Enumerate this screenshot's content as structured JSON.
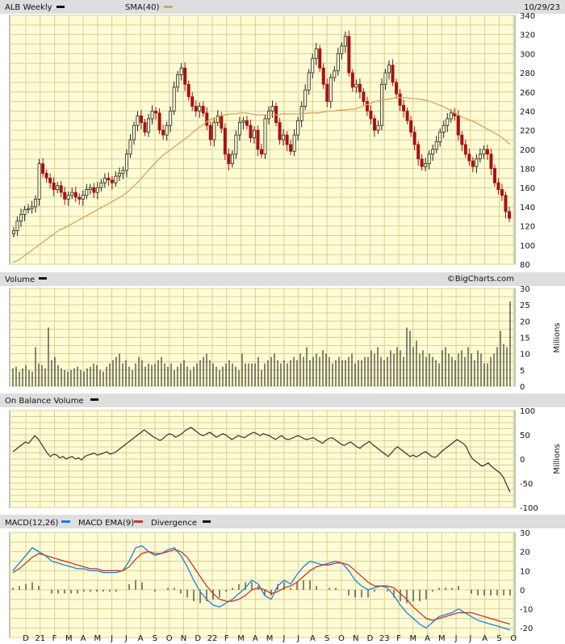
{
  "header": {
    "symbol_label": "ALB Weekly",
    "sma_label": "SMA(40)",
    "date": "10/29/23",
    "watermark": "©BigCharts.com"
  },
  "colors": {
    "panel_bg": "#fdfcd6",
    "grid": "#d8d28c",
    "header_bg": "#dedede",
    "up": "#222222",
    "down": "#aa1111",
    "sma": "#d9a55a",
    "macd": "#1e7ee6",
    "macd_ema": "#c0392b",
    "line": "#333333"
  },
  "chart_data": [
    {
      "type": "candlestick",
      "title": "ALB Weekly",
      "ylim": [
        80,
        340
      ],
      "yticks": [
        80,
        100,
        120,
        140,
        160,
        180,
        200,
        220,
        240,
        260,
        280,
        300,
        320,
        340
      ],
      "x_ticks": [
        "D",
        "21",
        "F",
        "M",
        "A",
        "M",
        "J",
        "J",
        "A",
        "S",
        "O",
        "N",
        "D",
        "22",
        "F",
        "M",
        "A",
        "M",
        "J",
        "J",
        "A",
        "S",
        "O",
        "N",
        "D",
        "23",
        "F",
        "M",
        "A",
        "M",
        "J",
        "J",
        "A",
        "S",
        "O"
      ],
      "closes": [
        115,
        125,
        132,
        137,
        138,
        140,
        148,
        185,
        175,
        170,
        165,
        158,
        162,
        155,
        148,
        152,
        155,
        150,
        148,
        152,
        158,
        160,
        155,
        160,
        165,
        170,
        168,
        165,
        172,
        175,
        178,
        195,
        210,
        225,
        235,
        228,
        218,
        232,
        240,
        238,
        220,
        215,
        225,
        240,
        265,
        278,
        285,
        268,
        255,
        245,
        240,
        245,
        238,
        225,
        210,
        228,
        235,
        222,
        195,
        185,
        195,
        215,
        228,
        230,
        225,
        212,
        220,
        200,
        195,
        232,
        240,
        245,
        228,
        210,
        215,
        205,
        198,
        215,
        230,
        245,
        262,
        280,
        295,
        305,
        285,
        268,
        250,
        275,
        282,
        300,
        308,
        318,
        280,
        265,
        268,
        260,
        250,
        240,
        232,
        220,
        225,
        268,
        280,
        288,
        270,
        258,
        246,
        240,
        230,
        218,
        205,
        190,
        182,
        185,
        195,
        200,
        208,
        218,
        225,
        232,
        238,
        235,
        215,
        205,
        195,
        188,
        182,
        190,
        195,
        200,
        195,
        180,
        165,
        158,
        152,
        135,
        128
      ],
      "sma": [
        82,
        84,
        88,
        92,
        96,
        100,
        104,
        108,
        112,
        116,
        118,
        121,
        124,
        127,
        130,
        133,
        136,
        139,
        142,
        145,
        148,
        151,
        155,
        160,
        165,
        171,
        177,
        183,
        189,
        194,
        198,
        202,
        206,
        210,
        214,
        219,
        223,
        227,
        231,
        233,
        235,
        236,
        237,
        237,
        238,
        238,
        237,
        236,
        236,
        236,
        236,
        236,
        237,
        237,
        237,
        237,
        237,
        238,
        238,
        238,
        239,
        240,
        240,
        241,
        241,
        242,
        242,
        244,
        246,
        248,
        250,
        251,
        252,
        253,
        254,
        254,
        254,
        253,
        253,
        252,
        251,
        249,
        247,
        245,
        242,
        239,
        236,
        233,
        231,
        229,
        226,
        223,
        220,
        217,
        214,
        210,
        205
      ],
      "sma_label": "SMA(40)"
    },
    {
      "type": "bar",
      "title": "Volume",
      "ylabel": "Millions",
      "ylim": [
        0,
        30
      ],
      "yticks": [
        0,
        5,
        10,
        15,
        20,
        25,
        30
      ],
      "values": [
        5.5,
        6,
        4.5,
        5.5,
        6.5,
        5,
        4.5,
        12,
        7,
        6.5,
        5.5,
        18,
        8,
        9,
        6.5,
        5.5,
        5,
        4.5,
        5,
        5.5,
        6,
        5,
        4.5,
        5.5,
        6,
        7,
        6.5,
        5,
        4.5,
        6,
        7,
        8,
        9,
        10,
        7,
        8,
        6,
        5,
        7,
        9,
        8,
        6,
        7,
        6.5,
        7,
        8,
        9,
        7,
        6,
        7,
        5,
        6,
        7,
        8,
        6,
        5,
        6,
        7,
        8,
        9,
        10,
        8,
        7,
        6,
        5,
        6,
        7,
        8,
        7,
        6,
        5,
        10,
        7,
        7,
        7,
        7,
        9,
        5,
        7,
        8,
        9,
        10,
        8,
        7,
        8,
        7,
        8,
        9,
        8,
        10,
        9,
        12,
        8,
        9,
        10,
        9,
        11,
        10,
        9,
        7,
        8,
        9,
        8,
        8,
        9,
        10,
        7,
        8,
        8,
        9,
        9,
        11,
        10,
        12,
        9,
        8,
        9,
        11,
        10,
        12,
        11,
        9,
        18,
        17,
        12,
        14,
        10,
        11,
        9,
        10,
        9,
        8,
        7,
        11,
        12,
        10,
        9,
        8,
        10,
        11,
        9,
        12,
        10,
        8,
        11,
        10,
        7,
        7,
        9,
        10,
        12,
        17,
        13,
        12,
        26
      ]
    },
    {
      "type": "line",
      "title": "On Balance Volume",
      "ylabel": "Millions",
      "ylim": [
        -100,
        100
      ],
      "yticks": [
        -100,
        -50,
        0,
        50,
        100
      ],
      "values": [
        15,
        20,
        25,
        30,
        35,
        32,
        40,
        48,
        42,
        32,
        22,
        12,
        5,
        10,
        8,
        2,
        5,
        0,
        3,
        5,
        0,
        2,
        -2,
        5,
        8,
        10,
        12,
        8,
        10,
        12,
        15,
        10,
        12,
        15,
        20,
        25,
        30,
        35,
        40,
        45,
        50,
        55,
        60,
        55,
        50,
        45,
        42,
        38,
        42,
        48,
        52,
        50,
        45,
        48,
        52,
        58,
        62,
        65,
        60,
        55,
        50,
        48,
        52,
        55,
        50,
        45,
        48,
        52,
        50,
        45,
        40,
        44,
        48,
        46,
        44,
        48,
        52,
        55,
        52,
        48,
        52,
        50,
        48,
        44,
        40,
        45,
        48,
        42,
        40,
        42,
        45,
        48,
        46,
        42,
        40,
        42,
        44,
        40,
        36,
        32,
        38,
        42,
        44,
        40,
        35,
        30,
        28,
        32,
        35,
        30,
        25,
        22,
        28,
        32,
        36,
        30,
        25,
        20,
        15,
        10,
        5,
        12,
        20,
        25,
        20,
        15,
        10,
        5,
        8,
        4,
        8,
        12,
        15,
        10,
        5,
        3,
        8,
        15,
        20,
        25,
        30,
        35,
        40,
        36,
        32,
        25,
        10,
        0,
        -5,
        -10,
        -15,
        -12,
        -8,
        -15,
        -20,
        -25,
        -30,
        -40,
        -55,
        -68
      ]
    },
    {
      "type": "line",
      "title": "MACD(12,26)",
      "ylim": [
        -25,
        30
      ],
      "yticks": [
        -20,
        -10,
        0,
        10,
        20,
        30
      ],
      "series": [
        {
          "name": "MACD(12,26)",
          "values": [
            10,
            14,
            18,
            22,
            20,
            18,
            15,
            14,
            13,
            12,
            11,
            11,
            10,
            10,
            9,
            9,
            9,
            10,
            15,
            22,
            23,
            20,
            18,
            19,
            21,
            22,
            18,
            12,
            5,
            -1,
            -5,
            -8,
            -9,
            -7,
            -5,
            -2,
            1,
            5,
            3,
            -3,
            -5,
            2,
            5,
            3,
            8,
            12,
            15,
            14,
            13,
            14,
            15,
            14,
            10,
            5,
            2,
            0,
            1,
            2,
            1,
            -3,
            -8,
            -12,
            -15,
            -18,
            -20,
            -17,
            -14,
            -13,
            -12,
            -10,
            -12,
            -14,
            -16,
            -17,
            -18,
            -19,
            -20,
            -21
          ]
        },
        {
          "name": "MACD EMA(9)",
          "values": [
            9,
            11,
            14,
            17,
            19,
            18,
            17,
            16,
            15,
            14,
            13,
            12,
            11,
            11,
            10,
            10,
            10,
            10,
            12,
            16,
            19,
            20,
            19,
            19,
            20,
            21,
            20,
            17,
            12,
            7,
            2,
            -2,
            -5,
            -6,
            -6,
            -5,
            -3,
            0,
            1,
            0,
            -2,
            -1,
            1,
            2,
            4,
            7,
            10,
            12,
            13,
            13,
            14,
            14,
            13,
            10,
            7,
            4,
            2,
            2,
            2,
            1,
            -2,
            -5,
            -9,
            -12,
            -15,
            -16,
            -15,
            -14,
            -13,
            -12,
            -12,
            -12,
            -13,
            -14,
            -15,
            -16,
            -17,
            -18
          ]
        }
      ],
      "divergence": [
        1,
        2,
        3,
        4,
        2,
        0,
        -2,
        -2,
        -2,
        -2,
        -2,
        -1,
        -1,
        -1,
        -1,
        -1,
        -1,
        0,
        3,
        5,
        4,
        0,
        -1,
        0,
        1,
        1,
        -2,
        -4,
        -6,
        -7,
        -6,
        -5,
        -4,
        -1,
        1,
        3,
        4,
        4,
        2,
        -3,
        -3,
        3,
        4,
        1,
        4,
        5,
        5,
        2,
        0,
        1,
        1,
        0,
        -3,
        -4,
        -4,
        -4,
        -1,
        0,
        -1,
        -4,
        -6,
        -7,
        -6,
        -6,
        -5,
        -1,
        1,
        1,
        1,
        2,
        0,
        -2,
        -3,
        -3,
        -3,
        -3,
        -3,
        -3
      ],
      "legend": [
        "MACD(12,26)",
        "MACD EMA(9)",
        "Divergence"
      ]
    }
  ]
}
